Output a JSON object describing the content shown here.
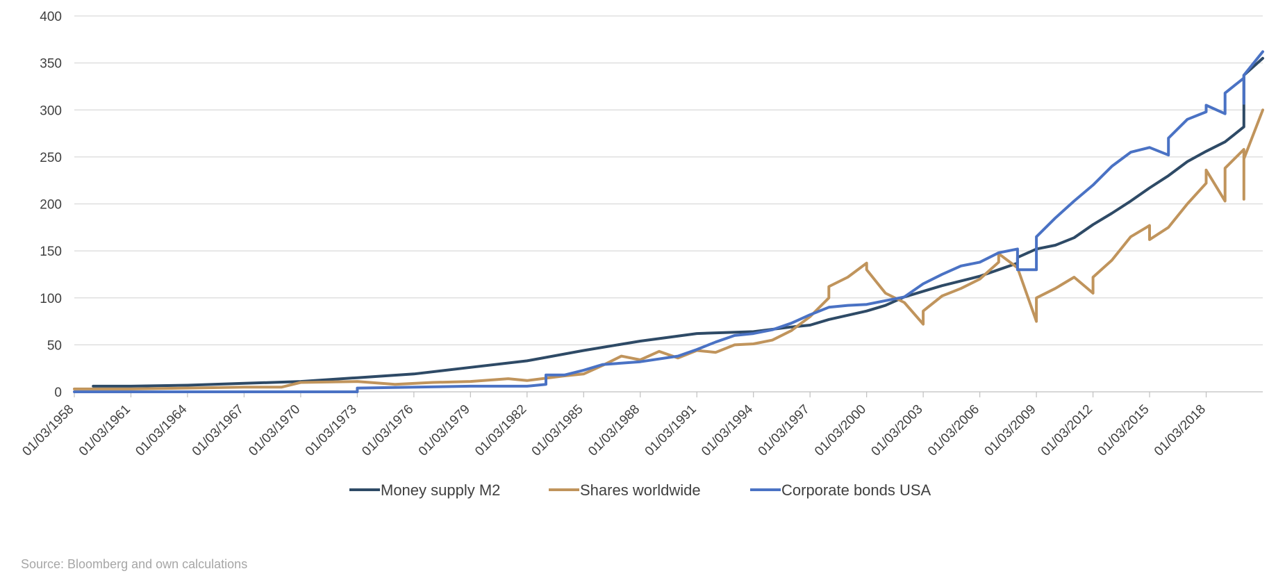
{
  "chart_data": {
    "type": "line",
    "title": "",
    "xlabel": "",
    "ylabel": "",
    "ylim": [
      0,
      400
    ],
    "y_ticks": [
      "0",
      "50",
      "100",
      "150",
      "200",
      "250",
      "300",
      "350",
      "400"
    ],
    "x_range": [
      "01/03/1958",
      "01/03/2021"
    ],
    "x_ticks": [
      "01/03/1958",
      "01/03/1961",
      "01/03/1964",
      "01/03/1967",
      "01/03/1970",
      "01/03/1973",
      "01/03/1976",
      "01/03/1979",
      "01/03/1982",
      "01/03/1985",
      "01/03/1988",
      "01/03/1991",
      "01/03/1994",
      "01/03/1997",
      "01/03/2000",
      "01/03/2003",
      "01/03/2006",
      "01/03/2009",
      "01/03/2012",
      "01/03/2015",
      "01/03/2018"
    ],
    "grid": "horizontal",
    "legend_position": "bottom",
    "series": [
      {
        "name": "Money supply M2",
        "color": "#2e4a66",
        "points": [
          [
            "01/03/1959",
            6
          ],
          [
            "01/03/1961",
            6
          ],
          [
            "01/03/1964",
            7
          ],
          [
            "01/03/1967",
            9
          ],
          [
            "01/03/1970",
            11
          ],
          [
            "01/03/1973",
            15
          ],
          [
            "01/03/1976",
            19
          ],
          [
            "01/03/1979",
            26
          ],
          [
            "01/03/1982",
            33
          ],
          [
            "01/03/1985",
            44
          ],
          [
            "01/03/1988",
            54
          ],
          [
            "01/03/1991",
            62
          ],
          [
            "01/03/1994",
            64
          ],
          [
            "01/03/1996",
            69
          ],
          [
            "01/03/1997",
            71
          ],
          [
            "01/03/1998",
            77
          ],
          [
            "01/03/2000",
            86
          ],
          [
            "01/03/2001",
            92
          ],
          [
            "01/03/2002",
            101
          ],
          [
            "01/03/2003",
            107
          ],
          [
            "01/03/2004",
            113
          ],
          [
            "01/03/2005",
            118
          ],
          [
            "01/03/2006",
            123
          ],
          [
            "01/03/2007",
            130
          ],
          [
            "01/03/2008",
            137
          ],
          [
            "01/03/2008",
            143
          ],
          [
            "01/03/2009",
            152
          ],
          [
            "01/03/2010",
            156
          ],
          [
            "01/03/2011",
            164
          ],
          [
            "01/03/2012",
            178
          ],
          [
            "01/03/2013",
            190
          ],
          [
            "01/03/2014",
            203
          ],
          [
            "01/03/2015",
            217
          ],
          [
            "01/03/2016",
            230
          ],
          [
            "01/03/2017",
            245
          ],
          [
            "01/03/2018",
            256
          ],
          [
            "01/03/2019",
            266
          ],
          [
            "01/03/2020",
            282
          ],
          [
            "01/03/2020",
            337
          ],
          [
            "01/03/2021",
            355
          ]
        ]
      },
      {
        "name": "Shares worldwide",
        "color": "#c0945c",
        "points": [
          [
            "01/03/1958",
            3
          ],
          [
            "01/03/1961",
            3
          ],
          [
            "01/03/1964",
            4
          ],
          [
            "01/03/1967",
            5
          ],
          [
            "01/03/1969",
            5
          ],
          [
            "01/03/1970",
            10
          ],
          [
            "01/03/1973",
            11
          ],
          [
            "01/03/1975",
            8
          ],
          [
            "01/03/1977",
            10
          ],
          [
            "01/03/1979",
            11
          ],
          [
            "01/03/1981",
            14
          ],
          [
            "01/03/1982",
            12
          ],
          [
            "01/03/1984",
            17
          ],
          [
            "01/03/1985",
            19
          ],
          [
            "01/03/1986",
            28
          ],
          [
            "01/03/1987",
            38
          ],
          [
            "01/03/1988",
            34
          ],
          [
            "01/03/1989",
            43
          ],
          [
            "01/03/1990",
            36
          ],
          [
            "01/03/1991",
            44
          ],
          [
            "01/03/1992",
            42
          ],
          [
            "01/03/1993",
            50
          ],
          [
            "01/03/1994",
            51
          ],
          [
            "01/03/1995",
            55
          ],
          [
            "01/03/1996",
            65
          ],
          [
            "01/03/1997",
            80
          ],
          [
            "01/03/1998",
            100
          ],
          [
            "01/03/1998",
            112
          ],
          [
            "01/03/1999",
            122
          ],
          [
            "01/03/2000",
            137
          ],
          [
            "01/03/2000",
            130
          ],
          [
            "01/03/2001",
            105
          ],
          [
            "01/03/2002",
            95
          ],
          [
            "01/03/2003",
            72
          ],
          [
            "01/03/2003",
            86
          ],
          [
            "01/03/2004",
            102
          ],
          [
            "01/03/2005",
            110
          ],
          [
            "01/03/2006",
            120
          ],
          [
            "01/03/2007",
            138
          ],
          [
            "01/03/2007",
            147
          ],
          [
            "01/03/2008",
            132
          ],
          [
            "01/03/2009",
            75
          ],
          [
            "01/03/2009",
            100
          ],
          [
            "01/03/2010",
            110
          ],
          [
            "01/03/2011",
            122
          ],
          [
            "01/03/2012",
            105
          ],
          [
            "01/03/2012",
            122
          ],
          [
            "01/03/2013",
            140
          ],
          [
            "01/03/2014",
            165
          ],
          [
            "01/03/2015",
            177
          ],
          [
            "01/03/2015",
            162
          ],
          [
            "01/03/2016",
            175
          ],
          [
            "01/03/2017",
            200
          ],
          [
            "01/03/2018",
            222
          ],
          [
            "01/03/2018",
            236
          ],
          [
            "01/03/2019",
            203
          ],
          [
            "01/03/2019",
            238
          ],
          [
            "01/03/2020",
            258
          ],
          [
            "01/03/2020",
            205
          ],
          [
            "01/03/2020",
            248
          ],
          [
            "01/03/2021",
            300
          ]
        ]
      },
      {
        "name": "Corporate bonds USA",
        "color": "#4a72c4",
        "points": [
          [
            "01/03/1958",
            0
          ],
          [
            "01/03/1973",
            0
          ],
          [
            "01/03/1973",
            4
          ],
          [
            "01/03/1979",
            6
          ],
          [
            "01/03/1982",
            6
          ],
          [
            "01/03/1983",
            8
          ],
          [
            "01/03/1983",
            18
          ],
          [
            "01/03/1984",
            18
          ],
          [
            "01/03/1985",
            23
          ],
          [
            "01/03/1986",
            29
          ],
          [
            "01/03/1988",
            32
          ],
          [
            "01/03/1990",
            38
          ],
          [
            "01/03/1991",
            45
          ],
          [
            "01/03/1992",
            53
          ],
          [
            "01/03/1993",
            60
          ],
          [
            "01/03/1994",
            62
          ],
          [
            "01/03/1995",
            66
          ],
          [
            "01/03/1996",
            73
          ],
          [
            "01/03/1997",
            82
          ],
          [
            "01/03/1998",
            90
          ],
          [
            "01/03/1999",
            92
          ],
          [
            "01/03/2000",
            93
          ],
          [
            "01/03/2001",
            97
          ],
          [
            "01/03/2002",
            101
          ],
          [
            "01/03/2003",
            115
          ],
          [
            "01/03/2004",
            125
          ],
          [
            "01/03/2005",
            134
          ],
          [
            "01/03/2006",
            138
          ],
          [
            "01/03/2007",
            148
          ],
          [
            "01/03/2008",
            152
          ],
          [
            "01/03/2008",
            130
          ],
          [
            "01/03/2009",
            130
          ],
          [
            "01/03/2009",
            165
          ],
          [
            "01/03/2010",
            185
          ],
          [
            "01/03/2011",
            203
          ],
          [
            "01/03/2012",
            220
          ],
          [
            "01/03/2013",
            240
          ],
          [
            "01/03/2014",
            255
          ],
          [
            "01/03/2015",
            260
          ],
          [
            "01/03/2016",
            252
          ],
          [
            "01/03/2016",
            270
          ],
          [
            "01/03/2017",
            290
          ],
          [
            "01/03/2018",
            298
          ],
          [
            "01/03/2018",
            305
          ],
          [
            "01/03/2019",
            296
          ],
          [
            "01/03/2019",
            318
          ],
          [
            "01/03/2020",
            334
          ],
          [
            "01/03/2020",
            307
          ],
          [
            "01/03/2020",
            337
          ],
          [
            "01/03/2021",
            362
          ]
        ]
      }
    ]
  },
  "source": "Source: Bloomberg and own calculations"
}
